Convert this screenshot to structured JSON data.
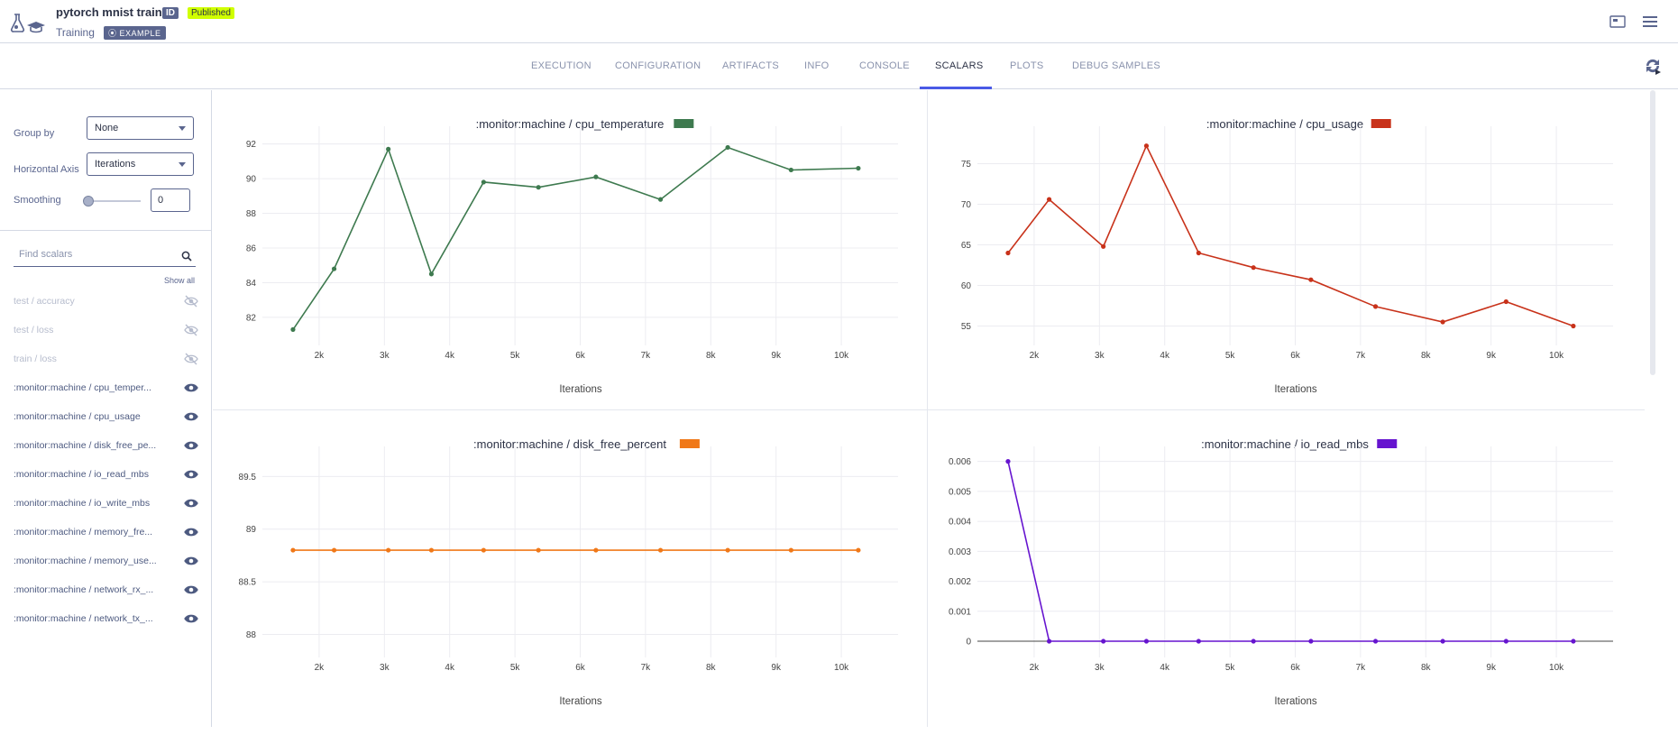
{
  "header": {
    "title": "pytorch mnist train",
    "id_badge": "ID",
    "status": "Published",
    "subtitle": "Training",
    "example": "EXAMPLE"
  },
  "tabs": [
    {
      "label": "EXECUTION"
    },
    {
      "label": "CONFIGURATION"
    },
    {
      "label": "ARTIFACTS"
    },
    {
      "label": "INFO"
    },
    {
      "label": "CONSOLE"
    },
    {
      "label": "SCALARS"
    },
    {
      "label": "PLOTS"
    },
    {
      "label": "DEBUG SAMPLES"
    }
  ],
  "sidebar": {
    "group_by_label": "Group by",
    "group_by_value": "None",
    "haxis_label": "Horizontal Axis",
    "haxis_value": "Iterations",
    "smoothing_label": "Smoothing",
    "smoothing_value": "0",
    "search_placeholder": "Find scalars",
    "show_all": "Show all",
    "items": [
      {
        "label": "test / accuracy",
        "visible": false
      },
      {
        "label": "test / loss",
        "visible": false
      },
      {
        "label": "train / loss",
        "visible": false
      },
      {
        "label": ":monitor:machine / cpu_temper...",
        "visible": true
      },
      {
        "label": ":monitor:machine / cpu_usage",
        "visible": true
      },
      {
        "label": ":monitor:machine / disk_free_pe...",
        "visible": true
      },
      {
        "label": ":monitor:machine / io_read_mbs",
        "visible": true
      },
      {
        "label": ":monitor:machine / io_write_mbs",
        "visible": true
      },
      {
        "label": ":monitor:machine / memory_fre...",
        "visible": true
      },
      {
        "label": ":monitor:machine / memory_use...",
        "visible": true
      },
      {
        "label": ":monitor:machine / network_rx_...",
        "visible": true
      },
      {
        "label": ":monitor:machine / network_tx_...",
        "visible": true
      }
    ]
  },
  "chart_data": [
    {
      "type": "line",
      "title": ":monitor:machine / cpu_temperature",
      "color": "#3e7a4f",
      "xlabel": "Iterations",
      "ylabel": "",
      "xlim": [
        1200,
        10800
      ],
      "ylim": [
        80.8,
        92.5
      ],
      "x_ticks": [
        2000,
        3000,
        4000,
        5000,
        6000,
        7000,
        8000,
        9000,
        10000
      ],
      "x_tick_labels": [
        "2k",
        "3k",
        "4k",
        "5k",
        "6k",
        "7k",
        "8k",
        "9k",
        "10k"
      ],
      "y_ticks": [
        82,
        84,
        86,
        88,
        90,
        92
      ],
      "y_tick_labels": [
        "82",
        "84",
        "86",
        "88",
        "90",
        "92"
      ],
      "x": [
        1600,
        2230,
        3060,
        3720,
        4520,
        5360,
        6240,
        7230,
        8260,
        9230,
        10260
      ],
      "y": [
        81.3,
        84.8,
        91.7,
        84.5,
        89.8,
        89.5,
        90.1,
        88.8,
        91.8,
        90.5,
        90.6
      ]
    },
    {
      "type": "line",
      "title": ":monitor:machine / cpu_usage",
      "color": "#c8321a",
      "xlabel": "Iterations",
      "ylabel": "",
      "xlim": [
        1200,
        10800
      ],
      "ylim": [
        53.5,
        78.5
      ],
      "x_ticks": [
        2000,
        3000,
        4000,
        5000,
        6000,
        7000,
        8000,
        9000,
        10000
      ],
      "x_tick_labels": [
        "2k",
        "3k",
        "4k",
        "5k",
        "6k",
        "7k",
        "8k",
        "9k",
        "10k"
      ],
      "y_ticks": [
        55,
        60,
        65,
        70,
        75
      ],
      "y_tick_labels": [
        "55",
        "60",
        "65",
        "70",
        "75"
      ],
      "x": [
        1600,
        2230,
        3060,
        3720,
        4520,
        5360,
        6240,
        7230,
        8260,
        9230,
        10260
      ],
      "y": [
        64.0,
        70.6,
        64.8,
        77.2,
        64.0,
        62.2,
        60.7,
        57.4,
        55.5,
        58.0,
        55.0
      ]
    },
    {
      "type": "line",
      "title": ":monitor:machine / disk_free_percent",
      "color": "#f07818",
      "xlabel": "Iterations",
      "ylabel": "",
      "xlim": [
        1200,
        10800
      ],
      "ylim": [
        87.85,
        89.7
      ],
      "x_ticks": [
        2000,
        3000,
        4000,
        5000,
        6000,
        7000,
        8000,
        9000,
        10000
      ],
      "x_tick_labels": [
        "2k",
        "3k",
        "4k",
        "5k",
        "6k",
        "7k",
        "8k",
        "9k",
        "10k"
      ],
      "y_ticks": [
        88,
        88.5,
        89,
        89.5
      ],
      "y_tick_labels": [
        "88",
        "88.5",
        "89",
        "89.5"
      ],
      "x": [
        1600,
        2230,
        3060,
        3720,
        4520,
        5360,
        6240,
        7230,
        8260,
        9230,
        10260
      ],
      "y": [
        88.8,
        88.8,
        88.8,
        88.8,
        88.8,
        88.8,
        88.8,
        88.8,
        88.8,
        88.8,
        88.8
      ]
    },
    {
      "type": "line",
      "title": ":monitor:machine / io_read_mbs",
      "color": "#6614cf",
      "xlabel": "Iterations",
      "ylabel": "",
      "xlim": [
        1200,
        10800
      ],
      "ylim": [
        -0.0003,
        0.0062
      ],
      "x_ticks": [
        2000,
        3000,
        4000,
        5000,
        6000,
        7000,
        8000,
        9000,
        10000
      ],
      "x_tick_labels": [
        "2k",
        "3k",
        "4k",
        "5k",
        "6k",
        "7k",
        "8k",
        "9k",
        "10k"
      ],
      "y_ticks": [
        0,
        0.001,
        0.002,
        0.003,
        0.004,
        0.005,
        0.006
      ],
      "y_tick_labels": [
        "0",
        "0.001",
        "0.002",
        "0.003",
        "0.004",
        "0.005",
        "0.006"
      ],
      "x": [
        1600,
        2230,
        3060,
        3720,
        4520,
        5360,
        6240,
        7230,
        8260,
        9230,
        10260
      ],
      "y": [
        0.006,
        0,
        0,
        0,
        0,
        0,
        0,
        0,
        0,
        0,
        0
      ]
    }
  ]
}
